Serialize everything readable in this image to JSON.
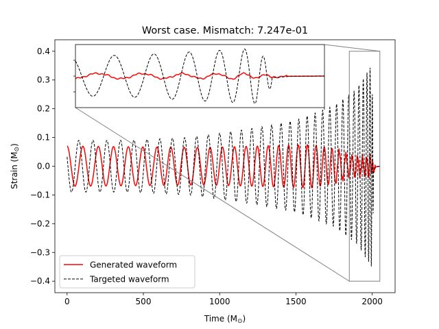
{
  "chart_data": {
    "type": "line",
    "title": "Worst case. Mismatch: 7.247e-01",
    "xlabel": "Time (M",
    "ylabel": "Strain (M",
    "xlim": [
      -80,
      2150
    ],
    "ylim": [
      -0.44,
      0.44
    ],
    "xticks": [
      0,
      500,
      1000,
      1500,
      2000
    ],
    "yticks": [
      -0.4,
      -0.3,
      -0.2,
      -0.1,
      0.0,
      0.1,
      0.2,
      0.3,
      0.4
    ],
    "xtick_labels": [
      "0",
      "500",
      "1000",
      "1500",
      "2000"
    ],
    "ytick_labels": [
      "−0.4",
      "−0.3",
      "−0.2",
      "−0.1",
      "0.0",
      "0.1",
      "0.2",
      "0.3",
      "0.4"
    ],
    "legend_position": "lower-left",
    "series": [
      {
        "name": "Generated waveform",
        "color": "#ff0000",
        "style": "solid",
        "x_range": [
          0,
          2050
        ],
        "cycles": 31,
        "amplitude_points": [
          [
            0,
            0.07
          ],
          [
            900,
            0.065
          ],
          [
            1600,
            0.075
          ],
          [
            1750,
            0.06
          ],
          [
            1850,
            0.035
          ],
          [
            1950,
            0.03
          ],
          [
            1990,
            0.035
          ],
          [
            2005,
            0.02
          ],
          [
            2020,
            0.003
          ],
          [
            2050,
            0.0
          ]
        ]
      },
      {
        "name": "Targeted waveform",
        "color": "#000000",
        "style": "dashed",
        "x_range": [
          0,
          2050
        ],
        "cycles": 34,
        "amplitude_points": [
          [
            0,
            0.09
          ],
          [
            400,
            0.09
          ],
          [
            800,
            0.1
          ],
          [
            1200,
            0.13
          ],
          [
            1500,
            0.16
          ],
          [
            1750,
            0.21
          ],
          [
            1900,
            0.27
          ],
          [
            1970,
            0.33
          ],
          [
            1995,
            0.35
          ],
          [
            2010,
            0.1
          ],
          [
            2025,
            0.01
          ],
          [
            2050,
            0.0
          ]
        ]
      }
    ],
    "inset": {
      "xlim": [
        1850,
        2050
      ],
      "ylim": [
        -0.4,
        0.4
      ],
      "zoom_box": {
        "x": [
          1850,
          2050
        ],
        "y": [
          -0.4,
          0.4
        ]
      }
    }
  }
}
